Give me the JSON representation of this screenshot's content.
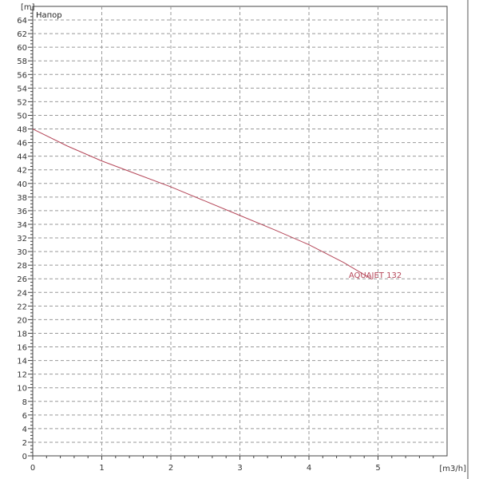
{
  "chart_data": {
    "type": "line",
    "title": "Напор",
    "xlabel": "[m3/h]",
    "ylabel": "[m]",
    "xlim": [
      0,
      6
    ],
    "ylim": [
      0,
      66
    ],
    "x_ticks": [
      "0",
      "1",
      "2",
      "3",
      "4",
      "5"
    ],
    "y_ticks": [
      "0",
      "2",
      "4",
      "6",
      "8",
      "10",
      "12",
      "14",
      "16",
      "18",
      "20",
      "22",
      "24",
      "26",
      "28",
      "30",
      "32",
      "34",
      "36",
      "38",
      "40",
      "42",
      "44",
      "46",
      "48",
      "50",
      "52",
      "54",
      "56",
      "58",
      "60",
      "62",
      "64"
    ],
    "grid": true,
    "series": [
      {
        "name": "AQUAJET 132",
        "color": "#b5485a",
        "x": [
          0,
          0.5,
          1,
          1.5,
          2,
          2.5,
          3,
          3.5,
          4,
          4.5,
          4.9
        ],
        "y": [
          48,
          45.5,
          43.3,
          41.4,
          39.5,
          37.4,
          35.3,
          33.2,
          31.0,
          28.4,
          26.0
        ]
      }
    ]
  }
}
